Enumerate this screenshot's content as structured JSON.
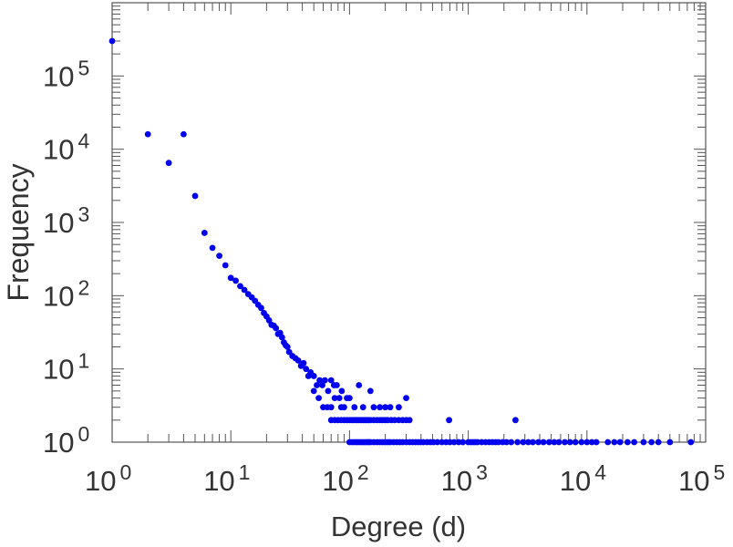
{
  "chart_data": {
    "type": "scatter",
    "title": "",
    "xlabel": "Degree (d)",
    "ylabel": "Frequency",
    "xscale": "log",
    "yscale": "log",
    "xlim": [
      1,
      100000
    ],
    "ylim": [
      1,
      1000000
    ],
    "grid": false,
    "marker_color": "#0000ee",
    "x_tick_labels": [
      {
        "base": "10",
        "exp": "0"
      },
      {
        "base": "10",
        "exp": "1"
      },
      {
        "base": "10",
        "exp": "2"
      },
      {
        "base": "10",
        "exp": "3"
      },
      {
        "base": "10",
        "exp": "4"
      },
      {
        "base": "10",
        "exp": "5"
      }
    ],
    "y_tick_labels": [
      {
        "base": "10",
        "exp": "0"
      },
      {
        "base": "10",
        "exp": "1"
      },
      {
        "base": "10",
        "exp": "2"
      },
      {
        "base": "10",
        "exp": "3"
      },
      {
        "base": "10",
        "exp": "4"
      },
      {
        "base": "10",
        "exp": "5"
      }
    ],
    "series": [
      {
        "points": [
          [
            1,
            300000
          ],
          [
            2,
            16000
          ],
          [
            3,
            6500
          ],
          [
            4,
            16000
          ],
          [
            5,
            2300
          ],
          [
            6,
            720
          ],
          [
            7,
            450
          ],
          [
            8,
            350
          ],
          [
            9,
            260
          ],
          [
            10,
            175
          ],
          [
            11,
            160
          ],
          [
            12,
            135
          ],
          [
            13,
            120
          ],
          [
            14,
            105
          ],
          [
            15,
            95
          ],
          [
            16,
            85
          ],
          [
            17,
            75
          ],
          [
            18,
            68
          ],
          [
            19,
            58
          ],
          [
            20,
            52
          ],
          [
            21,
            46
          ],
          [
            22,
            40
          ],
          [
            23,
            39
          ],
          [
            24,
            36
          ],
          [
            25,
            30
          ],
          [
            26,
            31
          ],
          [
            27,
            27
          ],
          [
            28,
            23
          ],
          [
            29,
            21
          ],
          [
            30,
            20
          ],
          [
            31,
            17
          ],
          [
            33,
            15
          ],
          [
            35,
            14
          ],
          [
            37,
            13
          ],
          [
            39,
            11
          ],
          [
            41,
            12
          ],
          [
            43,
            10
          ],
          [
            45,
            8
          ],
          [
            47,
            9
          ],
          [
            50,
            8
          ],
          [
            53,
            6
          ],
          [
            56,
            7
          ],
          [
            59,
            6
          ],
          [
            62,
            7
          ],
          [
            66,
            5
          ],
          [
            70,
            7
          ],
          [
            74,
            6
          ],
          [
            78,
            6
          ],
          [
            82,
            4
          ],
          [
            86,
            5
          ],
          [
            90,
            3
          ],
          [
            95,
            4
          ],
          [
            50,
            5
          ],
          [
            55,
            4
          ],
          [
            60,
            3
          ],
          [
            65,
            3
          ],
          [
            70,
            3
          ],
          [
            75,
            4
          ],
          [
            85,
            3
          ],
          [
            100,
            4
          ],
          [
            120,
            6
          ],
          [
            150,
            5
          ],
          [
            180,
            3
          ],
          [
            220,
            3
          ],
          [
            300,
            4
          ],
          [
            110,
            3
          ],
          [
            130,
            3
          ],
          [
            160,
            3
          ],
          [
            200,
            3
          ],
          [
            260,
            3
          ],
          [
            70,
            2
          ],
          [
            75,
            2
          ],
          [
            80,
            2
          ],
          [
            85,
            2
          ],
          [
            90,
            2
          ],
          [
            95,
            2
          ],
          [
            100,
            2
          ],
          [
            105,
            2
          ],
          [
            110,
            2
          ],
          [
            115,
            2
          ],
          [
            120,
            2
          ],
          [
            125,
            2
          ],
          [
            130,
            2
          ],
          [
            135,
            2
          ],
          [
            140,
            2
          ],
          [
            145,
            2
          ],
          [
            150,
            2
          ],
          [
            160,
            2
          ],
          [
            170,
            2
          ],
          [
            180,
            2
          ],
          [
            190,
            2
          ],
          [
            200,
            2
          ],
          [
            210,
            2
          ],
          [
            225,
            2
          ],
          [
            240,
            2
          ],
          [
            260,
            2
          ],
          [
            280,
            2
          ],
          [
            300,
            2
          ],
          [
            320,
            2
          ],
          [
            690,
            2
          ],
          [
            2500,
            2
          ],
          [
            100,
            1
          ],
          [
            105,
            1
          ],
          [
            110,
            1
          ],
          [
            115,
            1
          ],
          [
            120,
            1
          ],
          [
            125,
            1
          ],
          [
            130,
            1
          ],
          [
            135,
            1
          ],
          [
            140,
            1
          ],
          [
            145,
            1
          ],
          [
            150,
            1
          ],
          [
            160,
            1
          ],
          [
            170,
            1
          ],
          [
            180,
            1
          ],
          [
            190,
            1
          ],
          [
            200,
            1
          ],
          [
            210,
            1
          ],
          [
            220,
            1
          ],
          [
            235,
            1
          ],
          [
            250,
            1
          ],
          [
            265,
            1
          ],
          [
            280,
            1
          ],
          [
            300,
            1
          ],
          [
            320,
            1
          ],
          [
            340,
            1
          ],
          [
            360,
            1
          ],
          [
            380,
            1
          ],
          [
            400,
            1
          ],
          [
            420,
            1
          ],
          [
            450,
            1
          ],
          [
            480,
            1
          ],
          [
            510,
            1
          ],
          [
            550,
            1
          ],
          [
            600,
            1
          ],
          [
            650,
            1
          ],
          [
            700,
            1
          ],
          [
            760,
            1
          ],
          [
            830,
            1
          ],
          [
            900,
            1
          ],
          [
            1000,
            1
          ],
          [
            1050,
            1
          ],
          [
            1100,
            1
          ],
          [
            1150,
            1
          ],
          [
            1200,
            1
          ],
          [
            1300,
            1
          ],
          [
            1400,
            1
          ],
          [
            1500,
            1
          ],
          [
            1600,
            1
          ],
          [
            1700,
            1
          ],
          [
            1800,
            1
          ],
          [
            1950,
            1
          ],
          [
            2100,
            1
          ],
          [
            2300,
            1
          ],
          [
            2600,
            1
          ],
          [
            2900,
            1
          ],
          [
            3200,
            1
          ],
          [
            3500,
            1
          ],
          [
            3900,
            1
          ],
          [
            4300,
            1
          ],
          [
            4800,
            1
          ],
          [
            5300,
            1
          ],
          [
            5800,
            1
          ],
          [
            6500,
            1
          ],
          [
            7200,
            1
          ],
          [
            8000,
            1
          ],
          [
            9000,
            1
          ],
          [
            10000,
            1
          ],
          [
            11000,
            1
          ],
          [
            12000,
            1
          ],
          [
            15000,
            1
          ],
          [
            17000,
            1
          ],
          [
            19000,
            1
          ],
          [
            22000,
            1
          ],
          [
            25000,
            1
          ],
          [
            30000,
            1
          ],
          [
            35000,
            1
          ],
          [
            40000,
            1
          ],
          [
            50000,
            1
          ],
          [
            75000,
            1
          ]
        ]
      }
    ]
  }
}
